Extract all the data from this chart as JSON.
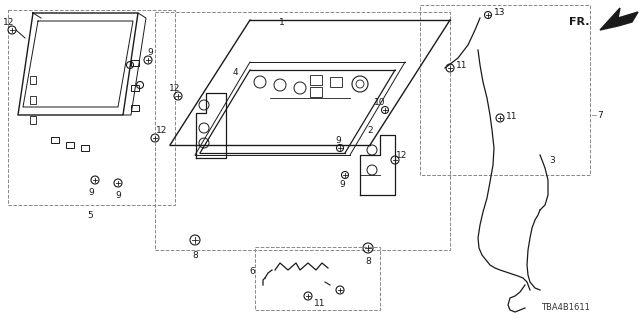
{
  "bg_color": "#ffffff",
  "line_color": "#1a1a1a",
  "gray_color": "#888888",
  "diagram_id": "TBA4B1611",
  "figsize": [
    6.4,
    3.2
  ],
  "dpi": 100,
  "label_fs": 7,
  "small_fs": 6.5,
  "lw_main": 1.0,
  "lw_thin": 0.7,
  "lw_dash": 0.6
}
